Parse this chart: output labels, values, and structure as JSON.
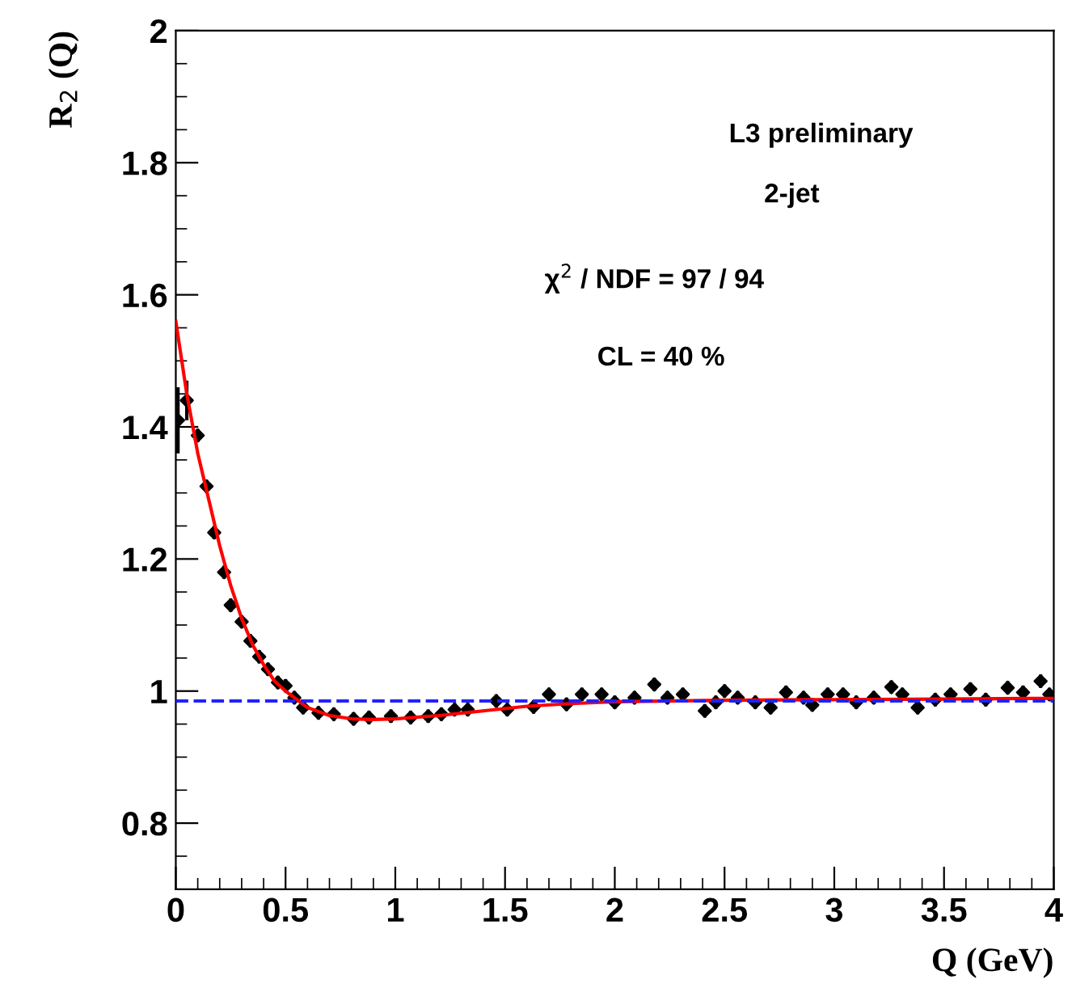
{
  "chart_data": {
    "type": "scatter",
    "xlabel": "Q (GeV)",
    "ylabel": "R$_{2}$ (Q)",
    "annotations": [
      "L3 preliminary",
      "2-jet",
      "χ$^{2}$ / NDF = 97 / 94",
      "CL = 40 %"
    ],
    "xlim": [
      0,
      4
    ],
    "ylim": [
      0.7,
      2
    ],
    "xticks": [
      0,
      0.5,
      1,
      1.5,
      2,
      2.5,
      3,
      3.5,
      4
    ],
    "yticks": [
      0.8,
      1,
      1.2,
      1.4,
      1.6,
      1.8,
      2
    ],
    "grid": false,
    "legend": false,
    "marker": "diamond",
    "ref_lines": [
      {
        "axis": "y",
        "value": 0.985,
        "color": "#2020ff",
        "line_style": "dashed"
      }
    ],
    "series": [
      {
        "color": "#000000",
        "x": [
          0.01,
          0.05,
          0.1,
          0.14,
          0.175,
          0.22,
          0.25,
          0.3,
          0.34,
          0.38,
          0.42,
          0.465,
          0.5,
          0.54,
          0.58,
          0.65,
          0.72,
          0.81,
          0.88,
          0.98,
          1.07,
          1.15,
          1.21,
          1.27,
          1.33,
          1.46,
          1.51,
          1.63,
          1.7,
          1.78,
          1.85,
          1.94,
          2.0,
          2.09,
          2.18,
          2.24,
          2.31,
          2.41,
          2.46,
          2.5,
          2.56,
          2.64,
          2.71,
          2.78,
          2.86,
          2.9,
          2.97,
          3.04,
          3.1,
          3.18,
          3.26,
          3.31,
          3.38,
          3.46,
          3.53,
          3.62,
          3.69,
          3.79,
          3.86,
          3.94,
          3.98
        ],
        "values": [
          1.41,
          1.44,
          1.387,
          1.31,
          1.24,
          1.18,
          1.13,
          1.105,
          1.076,
          1.052,
          1.033,
          1.013,
          1.008,
          0.99,
          0.975,
          0.967,
          0.965,
          0.958,
          0.96,
          0.962,
          0.96,
          0.962,
          0.965,
          0.972,
          0.972,
          0.985,
          0.972,
          0.976,
          0.995,
          0.98,
          0.995,
          0.995,
          0.983,
          0.99,
          1.01,
          0.99,
          0.995,
          0.97,
          0.983,
          1.0,
          0.99,
          0.983,
          0.975,
          0.998,
          0.99,
          0.979,
          0.995,
          0.995,
          0.983,
          0.99,
          1.006,
          0.995,
          0.975,
          0.987,
          0.995,
          1.003,
          0.987,
          1.005,
          0.998,
          1.015,
          0.995
        ],
        "errors": [
          0.05,
          0.03,
          0.01,
          0.01,
          0.01,
          0.01,
          0.01,
          0.01,
          0.01,
          0.01,
          0.01,
          0.01,
          0.01,
          0.01,
          0.01,
          0.01,
          0.01,
          0.01,
          0.01,
          0.01,
          0.01,
          0.01,
          0.01,
          0.01,
          0.01,
          0.01,
          0.01,
          0.01,
          0.01,
          0.01,
          0.01,
          0.01,
          0.01,
          0.01,
          0.01,
          0.01,
          0.01,
          0.01,
          0.01,
          0.01,
          0.01,
          0.01,
          0.01,
          0.01,
          0.01,
          0.01,
          0.01,
          0.01,
          0.01,
          0.01,
          0.01,
          0.01,
          0.01,
          0.01,
          0.01,
          0.01,
          0.01,
          0.01,
          0.01,
          0.01,
          0.01
        ]
      },
      {
        "type": "line",
        "color": "#ff0000",
        "marker": "none",
        "x": [
          0,
          0.05,
          0.1,
          0.15,
          0.2,
          0.25,
          0.3,
          0.35,
          0.4,
          0.45,
          0.5,
          0.6,
          0.7,
          0.8,
          0.9,
          1.0,
          1.2,
          1.4,
          1.6,
          1.8,
          2.0,
          2.5,
          3.0,
          3.5,
          4.0
        ],
        "values": [
          1.56,
          1.45,
          1.36,
          1.29,
          1.22,
          1.16,
          1.11,
          1.07,
          1.04,
          1.015,
          1.0,
          0.975,
          0.963,
          0.958,
          0.957,
          0.958,
          0.963,
          0.97,
          0.977,
          0.981,
          0.984,
          0.986,
          0.987,
          0.988,
          0.989
        ]
      }
    ]
  }
}
